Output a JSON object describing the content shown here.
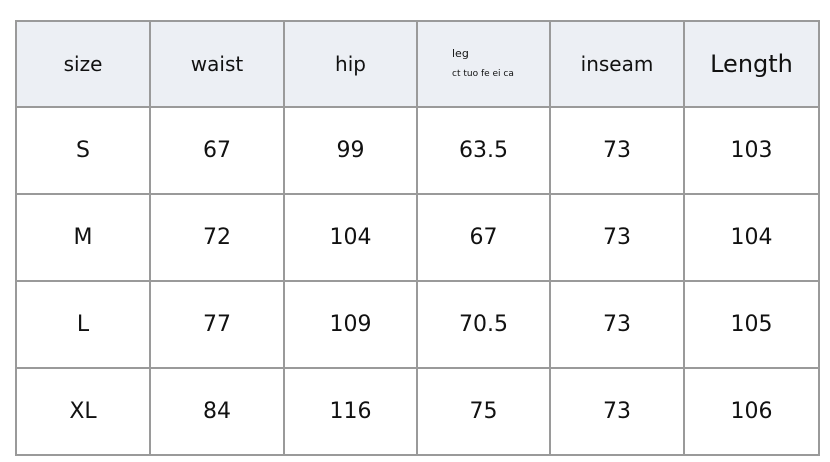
{
  "table": {
    "headers": [
      "size",
      "waist",
      "hip",
      "leg",
      "inseam",
      "Length"
    ],
    "leg_subtext": "ct tuo fe ei ca",
    "rows": [
      [
        "S",
        "67",
        "99",
        "63.5",
        "73",
        "103"
      ],
      [
        "M",
        "72",
        "104",
        "67",
        "73",
        "104"
      ],
      [
        "L",
        "77",
        "109",
        "70.5",
        "73",
        "105"
      ],
      [
        "XL",
        "84",
        "116",
        "75",
        "73",
        "106"
      ]
    ]
  }
}
